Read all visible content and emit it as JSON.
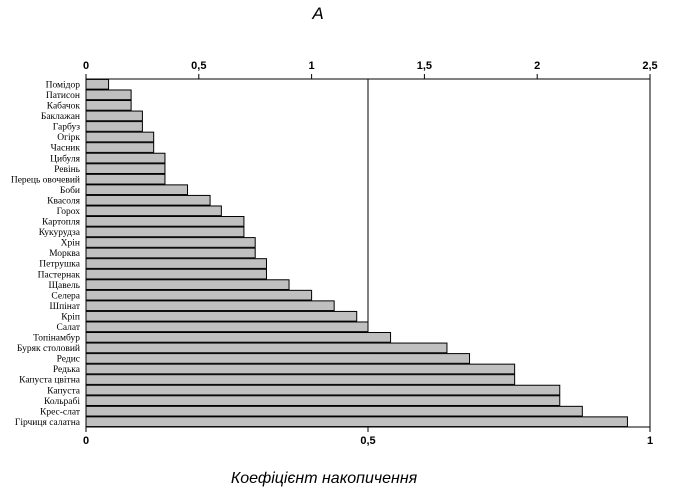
{
  "chart_data": {
    "type": "bar",
    "orientation": "horizontal",
    "title": "А",
    "xlabel": "Коефіцієнт накопичення",
    "ylabel": "",
    "categories": [
      "Помідор",
      "Патисон",
      "Кабачок",
      "Баклажан",
      "Гарбуз",
      "Огірк",
      "Часник",
      "Цибуля",
      "Ревінь",
      "Перець овочевий",
      "Боби",
      "Квасоля",
      "Горох",
      "Картопля",
      "Кукурудза",
      "Хрін",
      "Морква",
      "Петрушка",
      "Пастернак",
      "Щавель",
      "Селера",
      "Шпінат",
      "Кріп",
      "Салат",
      "Топінамбур",
      "Буряк столовий",
      "Редис",
      "Редька",
      "Капуста цвітна",
      "Капуста",
      "Кольрабі",
      "Крес-слат",
      "Гірчиця салатна"
    ],
    "values": [
      0.04,
      0.08,
      0.08,
      0.1,
      0.1,
      0.12,
      0.12,
      0.14,
      0.14,
      0.14,
      0.18,
      0.22,
      0.24,
      0.28,
      0.28,
      0.3,
      0.3,
      0.32,
      0.32,
      0.36,
      0.4,
      0.44,
      0.48,
      0.5,
      0.54,
      0.64,
      0.68,
      0.76,
      0.76,
      0.84,
      0.84,
      0.88,
      0.96
    ],
    "xlim": [
      0,
      1
    ],
    "xticks": [
      "0",
      "0,5",
      "1"
    ],
    "top_axis": {
      "range": [
        0,
        2.5
      ],
      "ticks": [
        "0",
        "0,5",
        "1",
        "1,5",
        "2",
        "2,5"
      ]
    },
    "reference_line": 0.5,
    "bar_color": "#c0c0c0",
    "grid": false
  }
}
